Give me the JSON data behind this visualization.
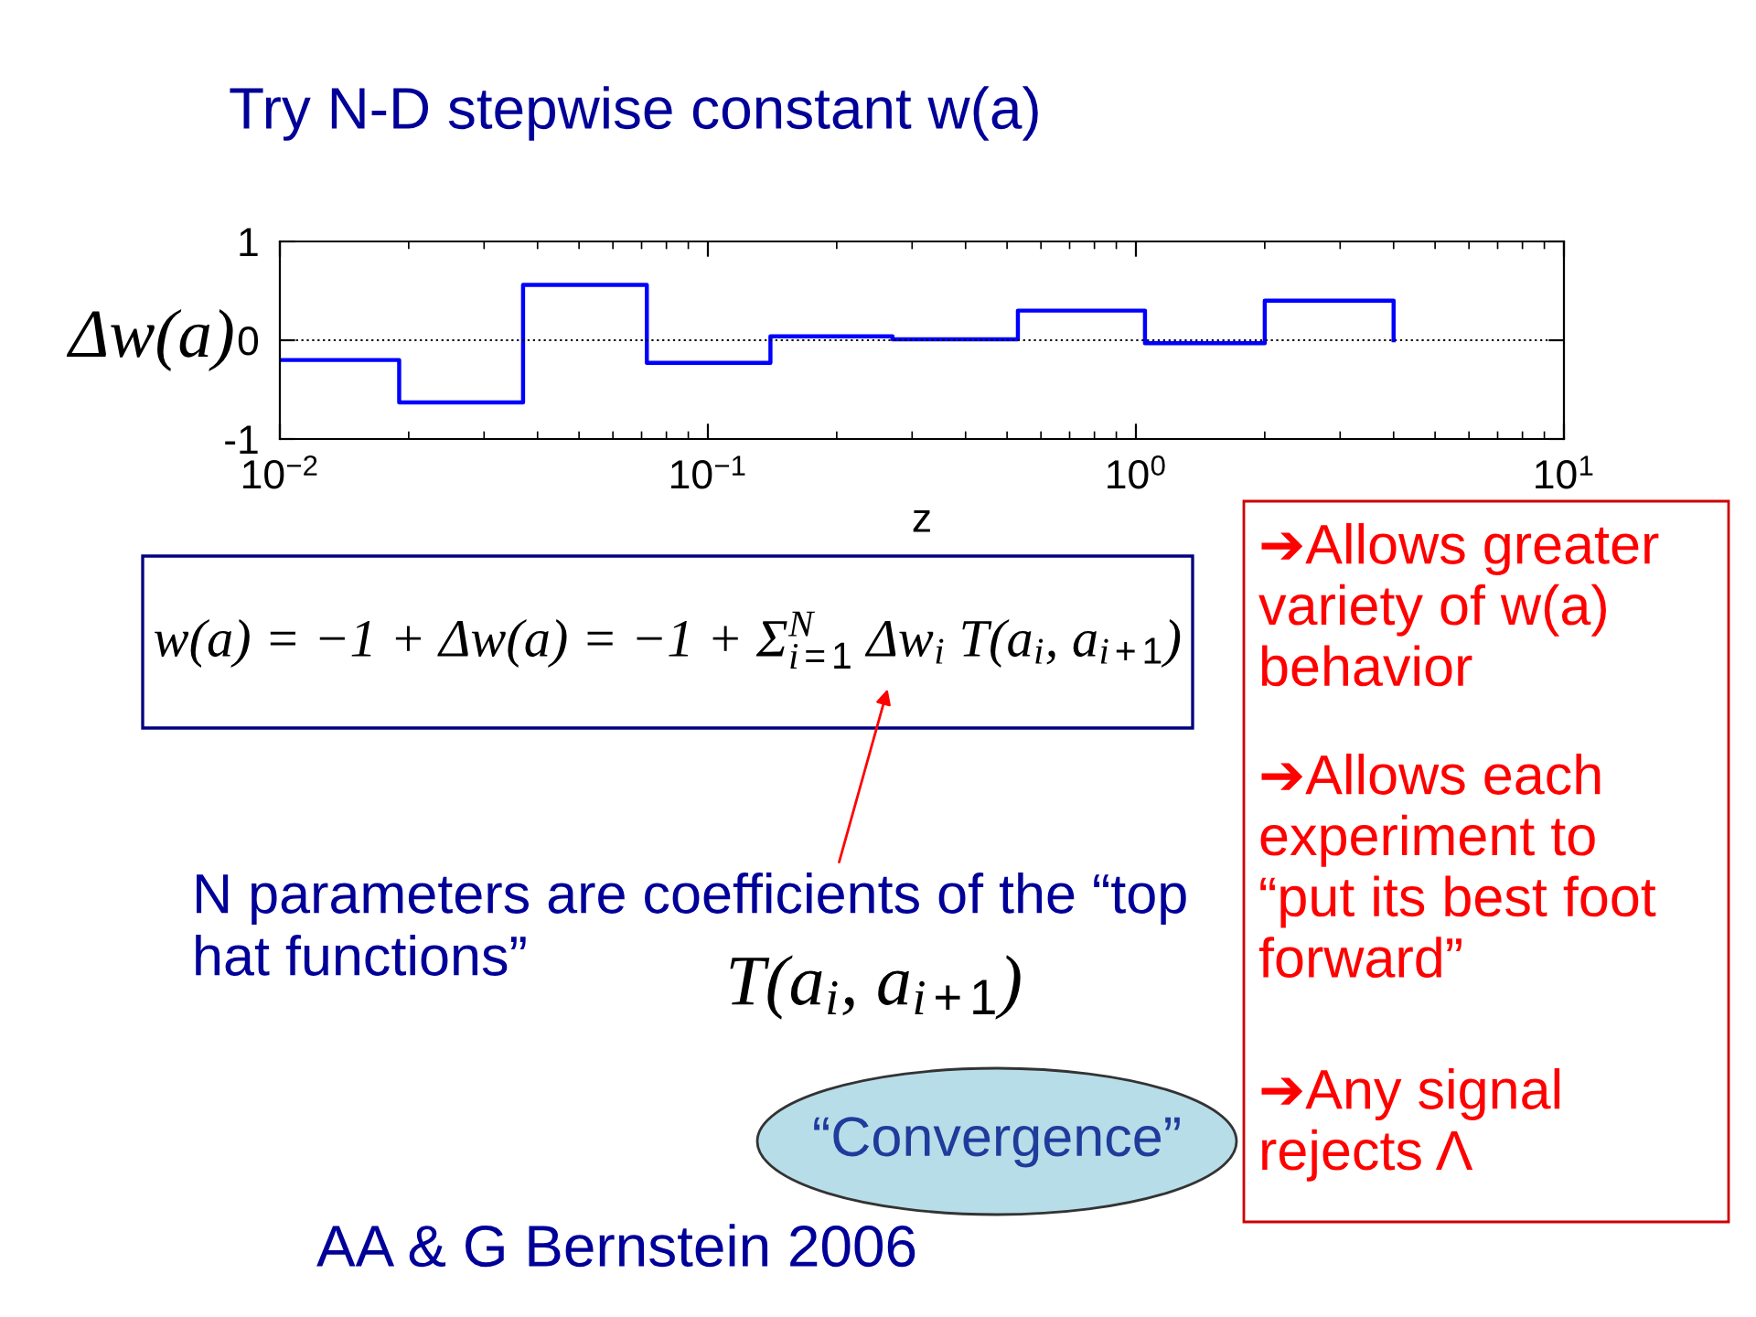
{
  "chart_data": {
    "type": "step",
    "title": "Try N-D stepwise constant w(a)",
    "xlabel": "z",
    "ylabel": "Δw(a)",
    "x": [
      0.01,
      0.019,
      0.037,
      0.072,
      0.14,
      0.27,
      0.53,
      1.05,
      2.0,
      4.0
    ],
    "series": [
      {
        "color": "#0000ff",
        "values": [
          -0.2,
          -0.63,
          0.56,
          -0.23,
          0.04,
          0.01,
          0.3,
          -0.03,
          0.4,
          0
        ]
      }
    ],
    "log": "x",
    "xlim": [
      0.01,
      10
    ],
    "xticks": [
      {
        "value": 0.01,
        "label": "10$^{−2}$"
      },
      {
        "value": 0.1,
        "label": "10$^{−1}$"
      },
      {
        "value": 1,
        "label": "10$^{0}$"
      },
      {
        "value": 10,
        "label": "10$^{1}$"
      }
    ],
    "ylim": [
      -1,
      1
    ],
    "yticks": [
      -1,
      0,
      1
    ],
    "ref_lines": [
      {
        "axis": "y",
        "value": 0,
        "color": "#000000",
        "line_style": "dotted"
      }
    ],
    "annotations": [
      "N parameters are coefficients of the “top\nhat functions”",
      "w(a) = −1 + Δw(a) = −1 + Σ$^{N}$$_{i=1}$ Δw$_{i}$ T(a$_{i}$, a$_{i+1}$)",
      "T(a$_{i}$, a$_{i+1}$)",
      "AA & G Bernstein 2006",
      "“Convergence”",
      "➔Allows greater\nvariety of w(a)\nbehavior",
      "➔Allows each\nexperiment to\n“put its best foot\nforward”",
      "➔Any signal\nrejects Λ"
    ]
  }
}
